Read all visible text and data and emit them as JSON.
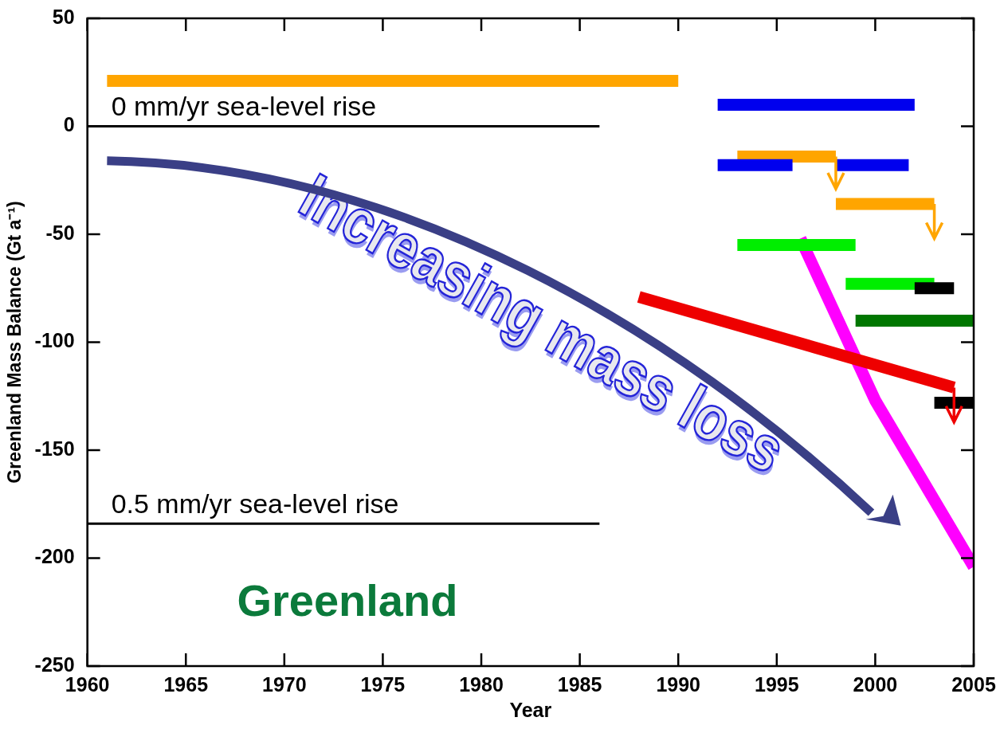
{
  "chart_data": {
    "type": "line",
    "xlabel": "Year",
    "ylabel": "Greenland Mass Balance (Gt a⁻¹)",
    "xlim": [
      1960,
      2005
    ],
    "xticks": [
      1960,
      1965,
      1970,
      1975,
      1980,
      1985,
      1990,
      1995,
      2000,
      2005
    ],
    "ylim": [
      -250,
      50
    ],
    "yticks": [
      -250,
      -200,
      -150,
      -100,
      -50,
      0,
      50
    ],
    "grid": false,
    "legend": false,
    "marker": "none",
    "line_style": "solid",
    "annotations": [
      "Increasing mass loss",
      "Greenland"
    ],
    "series": [
      {
        "name": "0 mm/yr sea-level rise",
        "color": "#000000",
        "x": [
          1960,
          1986
        ],
        "values": [
          0,
          0
        ]
      },
      {
        "name": "0.5 mm/yr sea-level rise",
        "color": "#000000",
        "x": [
          1960,
          1986
        ],
        "values": [
          -184,
          -184
        ]
      },
      {
        "color": "#ffa500",
        "x": [
          1961,
          1990
        ],
        "values": [
          21,
          21
        ]
      },
      {
        "color": "#0000ee",
        "x": [
          1992,
          2002
        ],
        "values": [
          10,
          10
        ]
      },
      {
        "color": "#0000ee",
        "x": [
          1992,
          1995.8
        ],
        "values": [
          -18,
          -18
        ]
      },
      {
        "color": "#0000ee",
        "x": [
          1998,
          2001.7
        ],
        "values": [
          -18,
          -18
        ]
      },
      {
        "color": "#ffa500",
        "x": [
          1993,
          1998
        ],
        "values": [
          -14,
          -14
        ]
      },
      {
        "color": "#ffa500",
        "x": [
          1998,
          2003
        ],
        "values": [
          -36,
          -36
        ]
      },
      {
        "color": "#00ee00",
        "x": [
          1993,
          1999
        ],
        "values": [
          -55,
          -55
        ]
      },
      {
        "color": "#000000",
        "x": [
          2002,
          2004
        ],
        "values": [
          -75,
          -75
        ]
      },
      {
        "color": "#00ee00",
        "x": [
          1998.5,
          2003
        ],
        "values": [
          -73,
          -73
        ]
      },
      {
        "color": "#007700",
        "x": [
          1999,
          2005
        ],
        "values": [
          -90,
          -90
        ]
      },
      {
        "color": "#000000",
        "x": [
          2003,
          2005
        ],
        "values": [
          -128,
          -128
        ]
      },
      {
        "color": "#ee0000",
        "x": [
          1988,
          2004
        ],
        "values": [
          -79,
          -121
        ]
      },
      {
        "color": "#ff00ff",
        "x": [
          1996.2,
          2000,
          2005
        ],
        "values": [
          -52,
          -127,
          -204
        ]
      }
    ]
  }
}
